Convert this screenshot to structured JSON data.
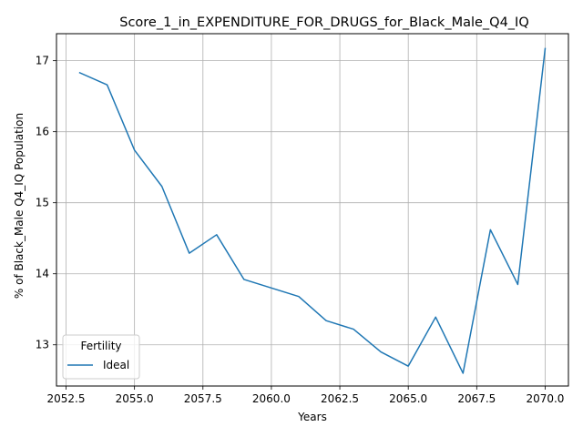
{
  "chart_data": {
    "type": "line",
    "title": "Score_1_in_EXPENDITURE_FOR_DRUGS_for_Black_Male_Q4_IQ",
    "xlabel": "Years",
    "ylabel": "% of Black_Male Q4_IQ Population",
    "xlim": [
      2052.15,
      2070.85
    ],
    "ylim": [
      12.42,
      17.38
    ],
    "x_ticks": [
      2052.5,
      2055.0,
      2057.5,
      2060.0,
      2062.5,
      2065.0,
      2067.5,
      2070.0
    ],
    "x_tick_labels": [
      "2052.5",
      "2055.0",
      "2057.5",
      "2060.0",
      "2062.5",
      "2065.0",
      "2067.5",
      "2070.0"
    ],
    "y_ticks": [
      13,
      14,
      15,
      16,
      17
    ],
    "y_tick_labels": [
      "13",
      "14",
      "15",
      "16",
      "17"
    ],
    "grid": true,
    "legend": {
      "title": "Fertility",
      "placement": "lower-left"
    },
    "series": [
      {
        "name": "Ideal",
        "color": "#1f77b4",
        "x": [
          2053,
          2054,
          2055,
          2056,
          2057,
          2058,
          2059,
          2060,
          2061,
          2062,
          2063,
          2064,
          2065,
          2066,
          2067,
          2068,
          2069,
          2070
        ],
        "y": [
          16.83,
          16.66,
          15.74,
          15.23,
          14.29,
          14.55,
          13.92,
          13.8,
          13.68,
          13.34,
          13.22,
          12.9,
          12.7,
          13.39,
          12.6,
          14.62,
          13.85,
          17.17
        ]
      }
    ]
  }
}
